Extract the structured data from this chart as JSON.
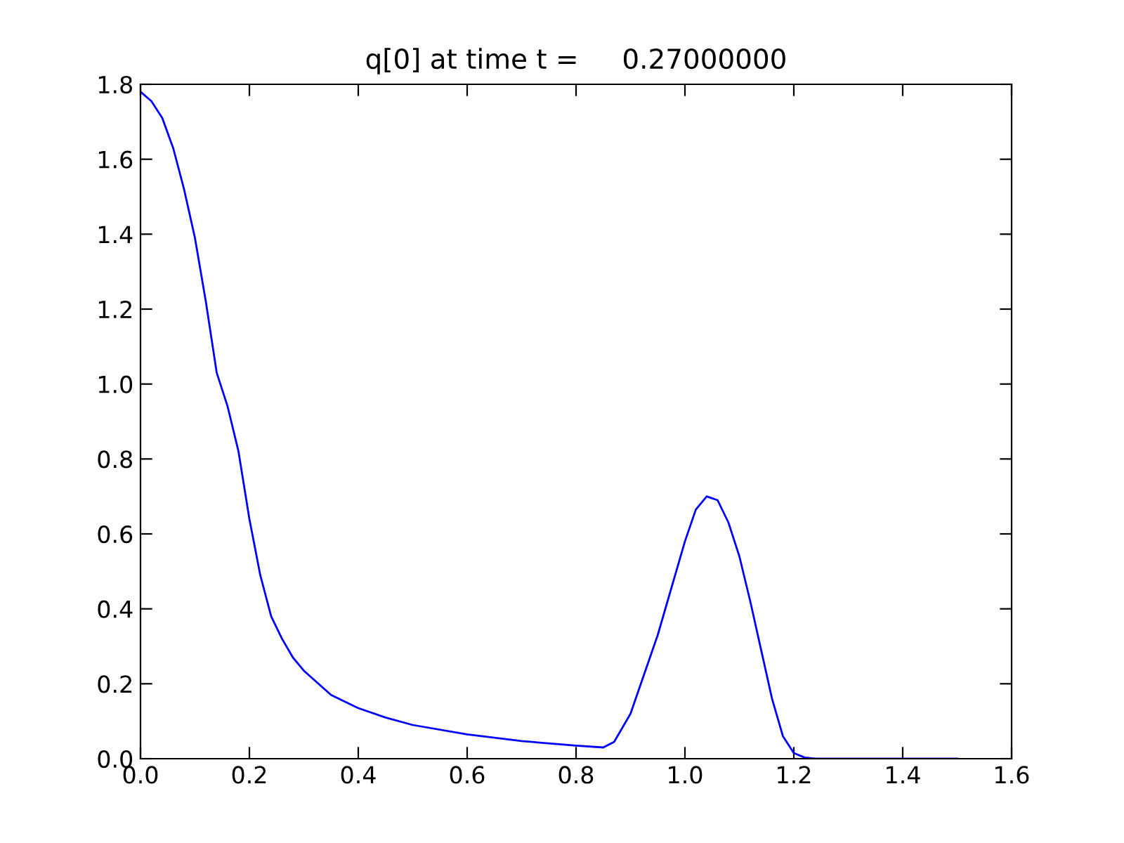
{
  "chart_data": {
    "type": "line",
    "title": "q[0] at time t =     0.27000000",
    "x": [
      0.0,
      0.02,
      0.04,
      0.06,
      0.08,
      0.1,
      0.12,
      0.14,
      0.16,
      0.18,
      0.2,
      0.22,
      0.24,
      0.26,
      0.28,
      0.3,
      0.35,
      0.4,
      0.45,
      0.5,
      0.6,
      0.7,
      0.8,
      0.85,
      0.87,
      0.9,
      0.95,
      1.0,
      1.02,
      1.04,
      1.06,
      1.08,
      1.1,
      1.12,
      1.14,
      1.16,
      1.18,
      1.2,
      1.22,
      1.24,
      1.5
    ],
    "series": [
      {
        "color": "#0000ff",
        "values": [
          1.78,
          1.755,
          1.71,
          1.63,
          1.52,
          1.39,
          1.22,
          1.03,
          0.94,
          0.82,
          0.64,
          0.49,
          0.38,
          0.32,
          0.27,
          0.235,
          0.17,
          0.135,
          0.11,
          0.09,
          0.065,
          0.047,
          0.035,
          0.03,
          0.045,
          0.12,
          0.33,
          0.58,
          0.665,
          0.7,
          0.69,
          0.63,
          0.54,
          0.42,
          0.29,
          0.16,
          0.06,
          0.015,
          0.003,
          0.0,
          0.0
        ]
      }
    ],
    "xlim": [
      0.0,
      1.6
    ],
    "ylim": [
      0.0,
      1.8
    ],
    "xticks": [
      {
        "value": 0.0,
        "label": "0.0"
      },
      {
        "value": 0.2,
        "label": "0.2"
      },
      {
        "value": 0.4,
        "label": "0.4"
      },
      {
        "value": 0.6,
        "label": "0.6"
      },
      {
        "value": 0.8,
        "label": "0.8"
      },
      {
        "value": 1.0,
        "label": "1.0"
      },
      {
        "value": 1.2,
        "label": "1.2"
      },
      {
        "value": 1.4,
        "label": "1.4"
      },
      {
        "value": 1.6,
        "label": "1.6"
      }
    ],
    "yticks": [
      {
        "value": 0.0,
        "label": "0.0"
      },
      {
        "value": 0.2,
        "label": "0.2"
      },
      {
        "value": 0.4,
        "label": "0.4"
      },
      {
        "value": 0.6,
        "label": "0.6"
      },
      {
        "value": 0.8,
        "label": "0.8"
      },
      {
        "value": 1.0,
        "label": "1.0"
      },
      {
        "value": 1.2,
        "label": "1.2"
      },
      {
        "value": 1.4,
        "label": "1.4"
      },
      {
        "value": 1.6,
        "label": "1.6"
      },
      {
        "value": 1.8,
        "label": "1.8"
      }
    ],
    "grid": false,
    "legend": false,
    "marker": "none",
    "line_style": "solid"
  }
}
